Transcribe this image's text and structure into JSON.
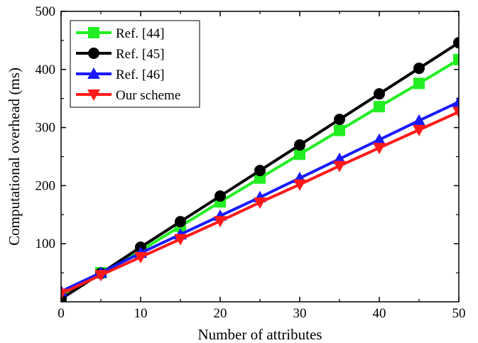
{
  "chart_data": {
    "type": "line",
    "title": "",
    "xlabel": "Number of attributes",
    "ylabel": "Computational overhead (ms)",
    "xlim": [
      0,
      50
    ],
    "ylim": [
      0,
      500
    ],
    "xticks": [
      0,
      10,
      20,
      30,
      40,
      50
    ],
    "yticks": [
      100,
      200,
      300,
      400,
      500
    ],
    "grid": false,
    "legend_position": "top-left",
    "x": [
      0,
      5,
      10,
      15,
      20,
      25,
      30,
      35,
      40,
      45,
      50
    ],
    "series": [
      {
        "name": "Ref. [44]",
        "color": "#22ee22",
        "marker": "square",
        "values": [
          10,
          50,
          88,
          130,
          172,
          213,
          254,
          295,
          336,
          376,
          417
        ]
      },
      {
        "name": "Ref. [45]",
        "color": "#000000",
        "marker": "circle",
        "values": [
          5,
          49,
          94,
          138,
          182,
          226,
          270,
          314,
          358,
          402,
          446
        ]
      },
      {
        "name": "Ref. [46]",
        "color": "#1a1aff",
        "marker": "triangle-up",
        "values": [
          18,
          50,
          84,
          116,
          148,
          180,
          213,
          246,
          279,
          312,
          344
        ]
      },
      {
        "name": "Our scheme",
        "color": "#ff1a1a",
        "marker": "triangle-down",
        "values": [
          14,
          46,
          77,
          108,
          139,
          171,
          202,
          234,
          265,
          296,
          327
        ]
      }
    ]
  }
}
